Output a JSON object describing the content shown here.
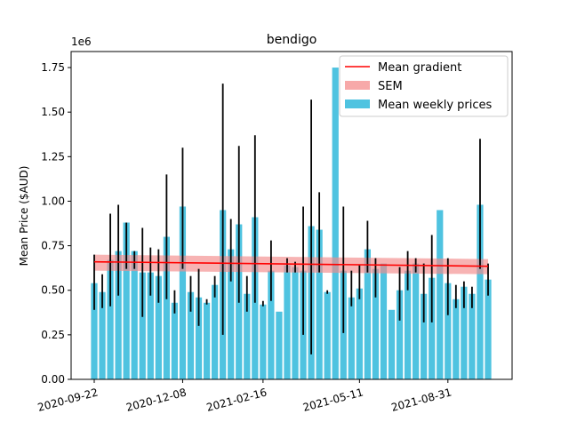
{
  "chart_data": {
    "type": "bar",
    "title": "bendigo",
    "ylabel": "Mean Price ($AUD)",
    "xlabel": "",
    "y_offset_label": "1e6",
    "ylim": [
      0,
      1.84
    ],
    "y_ticks": [
      0.0,
      0.25,
      0.5,
      0.75,
      1.0,
      1.25,
      1.5,
      1.75
    ],
    "y_tick_labels": [
      "0.00",
      "0.25",
      "0.50",
      "0.75",
      "1.00",
      "1.25",
      "1.50",
      "1.75"
    ],
    "x_tick_labels": [
      {
        "index": 0,
        "label": "2020-09-22"
      },
      {
        "index": 11,
        "label": "2020-12-08"
      },
      {
        "index": 21,
        "label": "2021-02-16"
      },
      {
        "index": 33,
        "label": "2021-05-11"
      },
      {
        "index": 44,
        "label": "2021-08-31"
      }
    ],
    "values": [
      0.54,
      0.49,
      0.67,
      0.72,
      0.88,
      0.72,
      0.6,
      0.6,
      0.58,
      0.8,
      0.43,
      0.97,
      0.49,
      0.46,
      0.43,
      0.53,
      0.95,
      0.73,
      0.87,
      0.48,
      0.91,
      0.42,
      0.61,
      0.38,
      0.64,
      0.63,
      0.61,
      0.86,
      0.84,
      0.49,
      1.75,
      0.61,
      0.46,
      0.51,
      0.73,
      0.62,
      0.65,
      0.39,
      0.5,
      0.61,
      0.65,
      0.48,
      0.57,
      0.95,
      0.54,
      0.45,
      0.52,
      0.48,
      0.98,
      0.56
    ],
    "error_low": [
      0.39,
      0.4,
      0.41,
      0.47,
      0.62,
      0.62,
      0.35,
      0.47,
      0.43,
      0.45,
      0.37,
      0.62,
      0.38,
      0.3,
      0.42,
      0.46,
      0.25,
      0.55,
      0.43,
      0.38,
      0.43,
      0.41,
      0.44,
      0.38,
      0.6,
      0.6,
      0.25,
      0.14,
      0.6,
      0.48,
      1.75,
      0.26,
      0.41,
      0.45,
      0.6,
      0.46,
      0.65,
      0.39,
      0.33,
      0.5,
      0.6,
      0.32,
      0.32,
      0.95,
      0.36,
      0.4,
      0.4,
      0.4,
      0.62,
      0.47
    ],
    "error_high": [
      0.7,
      0.59,
      0.93,
      0.98,
      0.88,
      0.72,
      0.85,
      0.74,
      0.73,
      1.15,
      0.5,
      1.3,
      0.58,
      0.62,
      0.45,
      0.58,
      1.66,
      0.9,
      1.31,
      0.58,
      1.37,
      0.44,
      0.78,
      0.38,
      0.68,
      0.66,
      0.97,
      1.57,
      1.05,
      0.5,
      1.75,
      0.97,
      0.61,
      0.64,
      0.89,
      0.68,
      0.65,
      0.39,
      0.63,
      0.72,
      0.68,
      0.65,
      0.81,
      0.95,
      0.68,
      0.53,
      0.55,
      0.52,
      1.35,
      0.65
    ],
    "mean_gradient": {
      "start": 0.66,
      "end": 0.635
    },
    "sem_band": {
      "start": [
        0.61,
        0.7
      ],
      "end": [
        0.59,
        0.675
      ]
    },
    "legend": {
      "placement": "top-right",
      "entries": [
        {
          "label": "Mean gradient",
          "kind": "line",
          "color": "#ff0000"
        },
        {
          "label": "SEM",
          "kind": "patch",
          "color": "#f7a9a9"
        },
        {
          "label": "Mean weekly prices",
          "kind": "patch",
          "color": "#4fc3e0"
        }
      ]
    },
    "colors": {
      "bar": "#4fc3e0",
      "error": "#000000",
      "line": "#ff0000",
      "band": "#f28b8b"
    }
  }
}
